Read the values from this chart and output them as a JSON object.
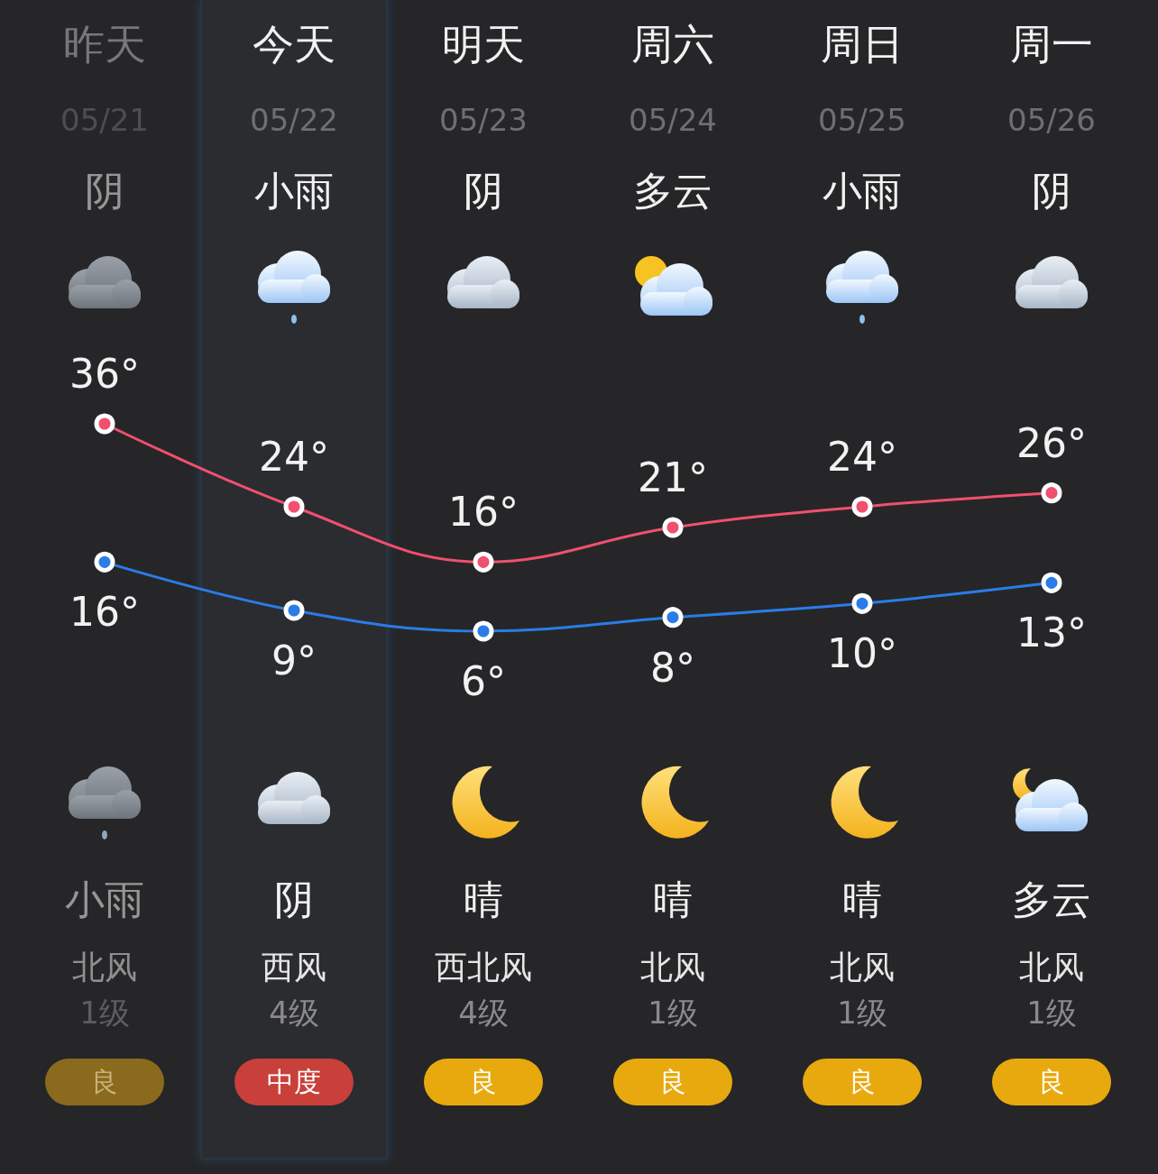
{
  "chart_data": {
    "type": "line",
    "categories": [
      "昨天",
      "今天",
      "明天",
      "周六",
      "周日",
      "周一"
    ],
    "series": [
      {
        "color": "#f0506e",
        "values": [
          36,
          24,
          16,
          21,
          24,
          26
        ],
        "value_labels": [
          "36°",
          "24°",
          "16°",
          "21°",
          "24°",
          "26°"
        ]
      },
      {
        "color": "#2a7ce8",
        "values": [
          16,
          9,
          6,
          8,
          10,
          13
        ],
        "value_labels": [
          "16°",
          "9°",
          "6°",
          "8°",
          "10°",
          "13°"
        ]
      }
    ],
    "marker": "circle",
    "grid": false,
    "tick_labels": "x",
    "annotations": [
      "05/21",
      "05/22",
      "05/23",
      "05/24",
      "05/25",
      "05/26",
      "阴",
      "小雨",
      "阴",
      "多云",
      "小雨",
      "阴",
      "小雨",
      "阴",
      "晴",
      "晴",
      "晴",
      "多云",
      "北风",
      "西风",
      "西北风",
      "北风",
      "北风",
      "北风",
      "1级",
      "4级",
      "4级",
      "1级",
      "1级",
      "1级",
      "良",
      "中度",
      "良",
      "良",
      "良",
      "良"
    ]
  }
}
